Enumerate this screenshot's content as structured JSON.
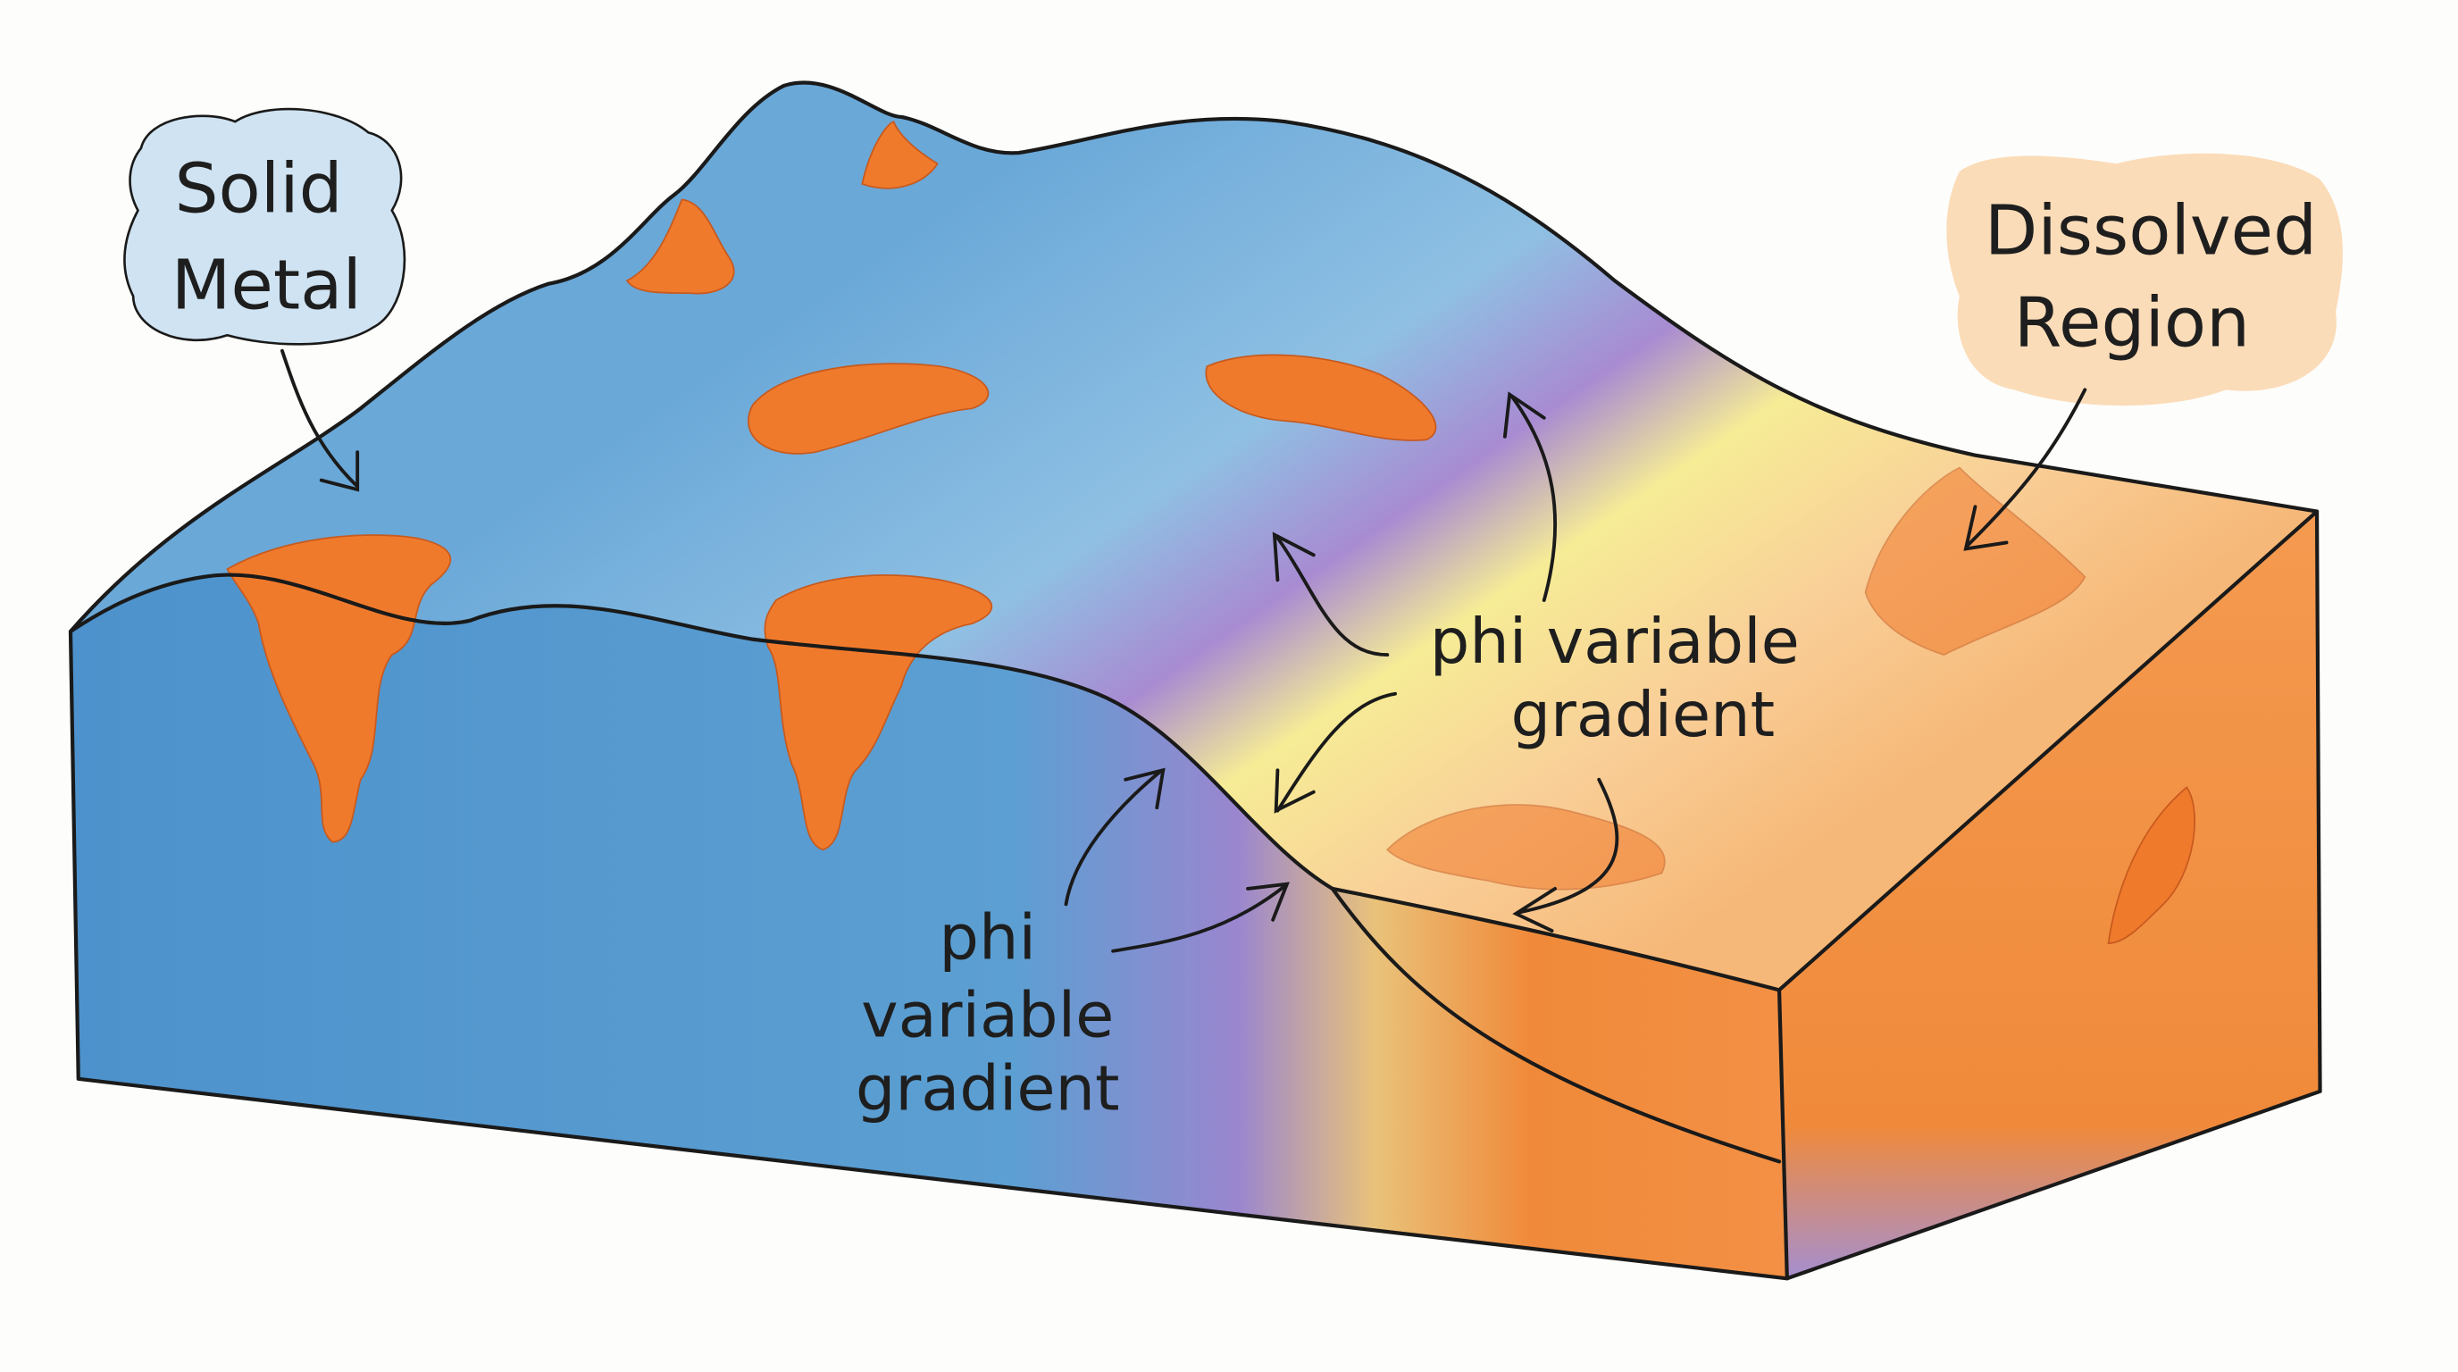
{
  "labels": {
    "solid_metal": [
      "Solid",
      "Metal"
    ],
    "dissolved_region": [
      "Dissolved",
      "Region"
    ],
    "gradient_upper": [
      "phi variable",
      "gradient"
    ],
    "gradient_lower": [
      "phi",
      "variable",
      "gradient"
    ]
  },
  "colors": {
    "solid_metal": "#5b9bd0",
    "purple_band": "#a98bd0",
    "yellow_band": "#f5e98a",
    "dissolved_light": "#f8c98f",
    "dissolved_deep": "#f08a3a",
    "pits": "#f07a2c",
    "solid_bubble": "#cfe3f2",
    "dissolved_bubble": "#fbdcb8"
  }
}
